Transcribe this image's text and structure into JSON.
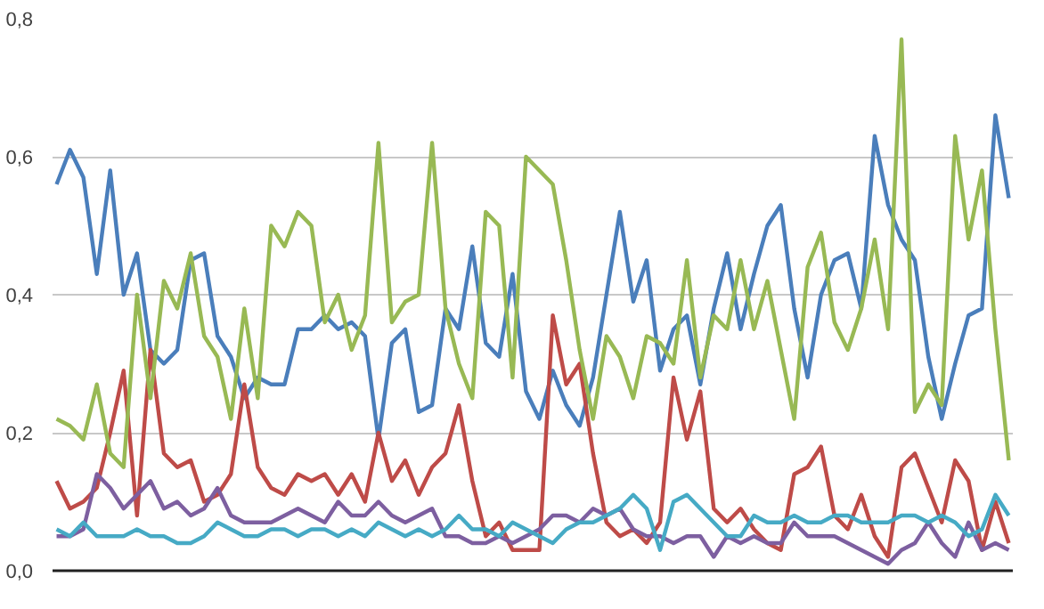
{
  "chart_data": {
    "type": "line",
    "categories": [
      null,
      null,
      null,
      null,
      null,
      null,
      null,
      null,
      null,
      null,
      null,
      null,
      null,
      null,
      null,
      null,
      null,
      null,
      null,
      null,
      null,
      null,
      null,
      null,
      null,
      null,
      null,
      null,
      null,
      null,
      null,
      null,
      null,
      null,
      null,
      null,
      null,
      null,
      null,
      null,
      null,
      null,
      null,
      null,
      null,
      null,
      null,
      null,
      null,
      null,
      null,
      null,
      null,
      null,
      null,
      null,
      null,
      null,
      null,
      null,
      null,
      null,
      null,
      null,
      null,
      null,
      null,
      null,
      null,
      null,
      null,
      null
    ],
    "ylim": [
      0,
      0.8
    ],
    "yticks": [
      {
        "value": 0,
        "label": "0,0"
      },
      {
        "value": 0.2,
        "label": "0,2"
      },
      {
        "value": 0.4,
        "label": "0,4"
      },
      {
        "value": 0.6,
        "label": "0,6"
      },
      {
        "value": 0.8,
        "label": "0,8"
      }
    ],
    "grid": "y",
    "tick_labels": "y",
    "marker": "none",
    "line_style": "solid",
    "series": [
      {
        "color": "#4a7ebb",
        "values": [
          0.56,
          0.61,
          0.57,
          0.43,
          0.58,
          0.4,
          0.46,
          0.32,
          0.3,
          0.32,
          0.45,
          0.46,
          0.34,
          0.31,
          0.25,
          0.28,
          0.27,
          0.27,
          0.35,
          0.35,
          0.37,
          0.35,
          0.36,
          0.34,
          0.19,
          0.33,
          0.35,
          0.23,
          0.24,
          0.38,
          0.35,
          0.47,
          0.33,
          0.31,
          0.43,
          0.26,
          0.22,
          0.29,
          0.24,
          0.21,
          0.28,
          0.4,
          0.52,
          0.39,
          0.45,
          0.29,
          0.35,
          0.37,
          0.27,
          0.38,
          0.46,
          0.35,
          0.43,
          0.5,
          0.53,
          0.38,
          0.28,
          0.4,
          0.45,
          0.46,
          0.38,
          0.63,
          0.53,
          0.48,
          0.45,
          0.31,
          0.22,
          0.3,
          0.37,
          0.38,
          0.66,
          0.54
        ]
      },
      {
        "color": "#be4b48",
        "values": [
          0.13,
          0.09,
          0.1,
          0.12,
          0.2,
          0.29,
          0.08,
          0.32,
          0.17,
          0.15,
          0.16,
          0.1,
          0.11,
          0.14,
          0.27,
          0.15,
          0.12,
          0.11,
          0.14,
          0.13,
          0.14,
          0.11,
          0.14,
          0.1,
          0.2,
          0.13,
          0.16,
          0.11,
          0.15,
          0.17,
          0.24,
          0.13,
          0.05,
          0.07,
          0.03,
          0.03,
          0.03,
          0.37,
          0.27,
          0.3,
          0.17,
          0.07,
          0.05,
          0.06,
          0.04,
          0.07,
          0.28,
          0.19,
          0.26,
          0.09,
          0.07,
          0.09,
          0.06,
          0.04,
          0.03,
          0.14,
          0.15,
          0.18,
          0.08,
          0.06,
          0.11,
          0.05,
          0.02,
          0.15,
          0.17,
          0.12,
          0.07,
          0.16,
          0.13,
          0.03,
          0.1,
          0.04
        ]
      },
      {
        "color": "#98b954",
        "values": [
          0.22,
          0.21,
          0.19,
          0.27,
          0.17,
          0.15,
          0.4,
          0.25,
          0.42,
          0.38,
          0.46,
          0.34,
          0.31,
          0.22,
          0.38,
          0.25,
          0.5,
          0.47,
          0.52,
          0.5,
          0.36,
          0.4,
          0.32,
          0.37,
          0.62,
          0.36,
          0.39,
          0.4,
          0.62,
          0.38,
          0.3,
          0.25,
          0.52,
          0.5,
          0.28,
          0.6,
          0.58,
          0.56,
          0.45,
          0.32,
          0.22,
          0.34,
          0.31,
          0.25,
          0.34,
          0.33,
          0.3,
          0.45,
          0.28,
          0.37,
          0.35,
          0.45,
          0.35,
          0.42,
          0.32,
          0.22,
          0.44,
          0.49,
          0.36,
          0.32,
          0.38,
          0.48,
          0.35,
          0.77,
          0.23,
          0.27,
          0.24,
          0.63,
          0.48,
          0.58,
          0.35,
          0.16
        ]
      },
      {
        "color": "#7d5fa0",
        "values": [
          0.05,
          0.05,
          0.06,
          0.14,
          0.12,
          0.09,
          0.11,
          0.13,
          0.09,
          0.1,
          0.08,
          0.09,
          0.12,
          0.08,
          0.07,
          0.07,
          0.07,
          0.08,
          0.09,
          0.08,
          0.07,
          0.1,
          0.08,
          0.08,
          0.1,
          0.08,
          0.07,
          0.08,
          0.09,
          0.05,
          0.05,
          0.04,
          0.04,
          0.05,
          0.04,
          0.05,
          0.06,
          0.08,
          0.08,
          0.07,
          0.09,
          0.08,
          0.09,
          0.06,
          0.05,
          0.05,
          0.04,
          0.05,
          0.05,
          0.02,
          0.05,
          0.04,
          0.05,
          0.04,
          0.04,
          0.07,
          0.05,
          0.05,
          0.05,
          0.04,
          0.03,
          0.02,
          0.01,
          0.03,
          0.04,
          0.07,
          0.04,
          0.02,
          0.07,
          0.03,
          0.04,
          0.03
        ]
      },
      {
        "color": "#46aac5",
        "values": [
          0.06,
          0.05,
          0.07,
          0.05,
          0.05,
          0.05,
          0.06,
          0.05,
          0.05,
          0.04,
          0.04,
          0.05,
          0.07,
          0.06,
          0.05,
          0.05,
          0.06,
          0.06,
          0.05,
          0.06,
          0.06,
          0.05,
          0.06,
          0.05,
          0.07,
          0.06,
          0.05,
          0.06,
          0.05,
          0.06,
          0.08,
          0.06,
          0.06,
          0.05,
          0.07,
          0.06,
          0.05,
          0.04,
          0.06,
          0.07,
          0.07,
          0.08,
          0.09,
          0.11,
          0.09,
          0.03,
          0.1,
          0.11,
          0.09,
          0.07,
          0.05,
          0.05,
          0.08,
          0.07,
          0.07,
          0.08,
          0.07,
          0.07,
          0.08,
          0.08,
          0.07,
          0.07,
          0.07,
          0.08,
          0.08,
          0.07,
          0.08,
          0.07,
          0.05,
          0.06,
          0.11,
          0.08
        ]
      }
    ]
  }
}
